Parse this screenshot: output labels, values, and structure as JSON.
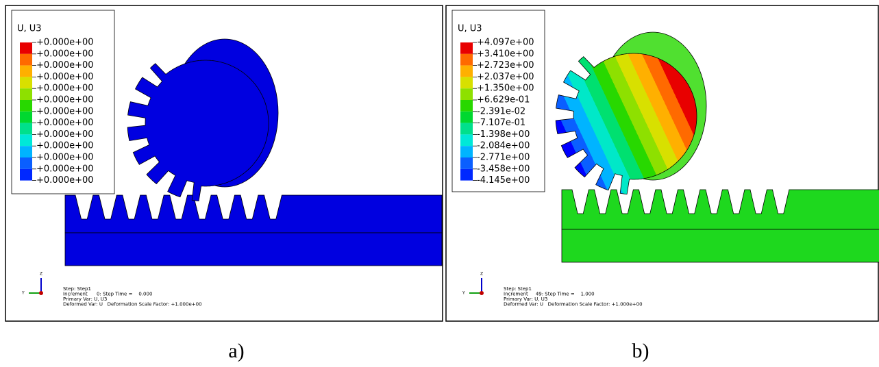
{
  "panels": [
    {
      "legend": {
        "title": "U, U3",
        "labels": [
          "+0.000e+00",
          "+0.000e+00",
          "+0.000e+00",
          "+0.000e+00",
          "+0.000e+00",
          "+0.000e+00",
          "+0.000e+00",
          "+0.000e+00",
          "+0.000e+00",
          "+0.000e+00",
          "+0.000e+00",
          "+0.000e+00",
          "+0.000e+00"
        ]
      },
      "triad": {
        "z": "Z",
        "y": "Y"
      },
      "info": [
        "Step: Step1",
        "Increment      0: Step Time =    0.000",
        "Primary Var: U, U3",
        "Deformed Var: U   Deformation Scale Factor: +1.000e+00"
      ],
      "caption": "a)"
    },
    {
      "legend": {
        "title": "U, U3",
        "labels": [
          "+4.097e+00",
          "+3.410e+00",
          "+2.723e+00",
          "+2.037e+00",
          "+1.350e+00",
          "+6.629e-01",
          "-2.391e-02",
          "-7.107e-01",
          "-1.398e+00",
          "-2.084e+00",
          "-2.771e+00",
          "-3.458e+00",
          "-4.145e+00"
        ]
      },
      "triad": {
        "z": "Z",
        "y": "Y"
      },
      "info": [
        "Step: Step1",
        "Increment     49: Step Time =    1.000",
        "Primary Var: U, U3",
        "Deformed Var: U   Deformation Scale Factor: +1.000e+00"
      ],
      "caption": "b)"
    }
  ]
}
